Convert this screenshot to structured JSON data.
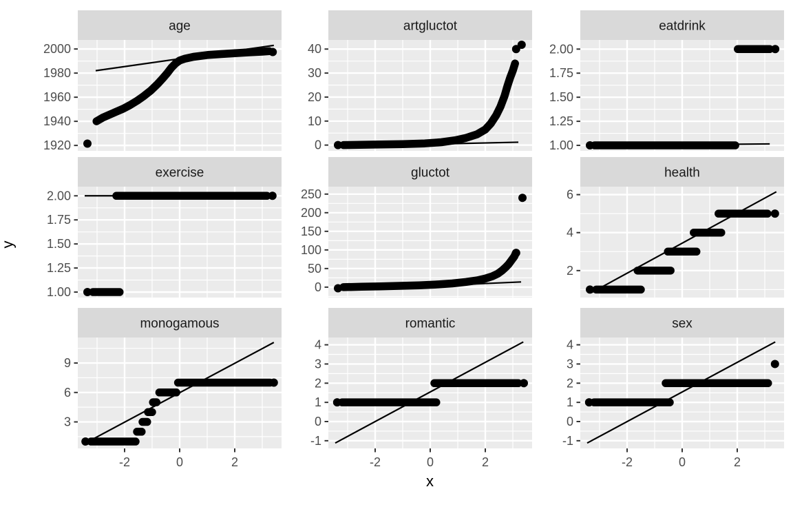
{
  "axes": {
    "x_label": "x",
    "y_label": "y"
  },
  "style": {
    "panel_bg": "#EBEBEB",
    "strip_bg": "#D9D9D9",
    "grid": "#FFFFFF",
    "point": "#000000",
    "ref_line": "#000000",
    "axis_text": "#4D4D4D",
    "strip_text": "#1A1A1A",
    "tick_mark": "#333333"
  },
  "chart_data": {
    "type": "scatter",
    "title": "",
    "description": "3x3 faceted Q-Q plots: sample quantiles (y) vs theoretical normal quantiles (x), free y scales, with Q-Q reference lines",
    "xlabel": "x",
    "ylabel": "y",
    "grid": true,
    "x_domain": [
      -3.7,
      3.7
    ],
    "x_ticks": {
      "values": [
        -2,
        0,
        2
      ],
      "labels": [
        "-2",
        "0",
        "2"
      ]
    },
    "facets": [
      {
        "title": "age",
        "row": 0,
        "col": 0,
        "y_domain": [
          1915.5,
          2007.5
        ],
        "y_ticks": {
          "values": [
            1920,
            1940,
            1960,
            1980,
            2000
          ],
          "labels": [
            "1920",
            "1940",
            "1960",
            "1980",
            "2000"
          ]
        },
        "groups": [
          {
            "type": "dot",
            "x": -3.35,
            "y": 1921.5
          },
          {
            "type": "curve",
            "pts": [
              [
                -3.02,
                1940
              ],
              [
                -2.8,
                1943
              ],
              [
                -2.55,
                1945.5
              ],
              [
                -2.3,
                1948
              ],
              [
                -2.05,
                1950.5
              ],
              [
                -1.8,
                1953.5
              ],
              [
                -1.55,
                1957
              ],
              [
                -1.3,
                1961
              ],
              [
                -1.05,
                1965.5
              ],
              [
                -0.8,
                1971
              ],
              [
                -0.6,
                1976
              ],
              [
                -0.45,
                1980
              ],
              [
                -0.3,
                1984.5
              ],
              [
                -0.15,
                1988
              ],
              [
                0,
                1990.5
              ],
              [
                0.2,
                1992
              ],
              [
                0.5,
                1993.5
              ],
              [
                1,
                1995
              ],
              [
                1.5,
                1995.8
              ],
              [
                2,
                1996.5
              ],
              [
                2.5,
                1997.2
              ],
              [
                3,
                1997.8
              ],
              [
                3.25,
                1998.2
              ]
            ]
          },
          {
            "type": "dot",
            "x": 3.38,
            "y": 1997.5
          }
        ],
        "line": [
          -3.05,
          1982,
          3.42,
          2003
        ]
      },
      {
        "title": "artgluctot",
        "row": 0,
        "col": 1,
        "y_domain": [
          -2.4,
          43.8
        ],
        "y_ticks": {
          "values": [
            0,
            10,
            20,
            30,
            40
          ],
          "labels": [
            "0",
            "10",
            "20",
            "30",
            "40"
          ]
        },
        "groups": [
          {
            "type": "dot",
            "x": -3.35,
            "y": 0
          },
          {
            "type": "curve",
            "pts": [
              [
                -3.15,
                0
              ],
              [
                -2,
                0.2
              ],
              [
                -1,
                0.4
              ],
              [
                -0.2,
                0.7
              ],
              [
                0.4,
                1.2
              ],
              [
                0.9,
                2
              ],
              [
                1.3,
                3
              ],
              [
                1.7,
                4.5
              ],
              [
                2,
                6.5
              ],
              [
                2.2,
                9
              ],
              [
                2.4,
                12.5
              ],
              [
                2.55,
                16
              ],
              [
                2.7,
                20.5
              ],
              [
                2.8,
                24.5
              ],
              [
                2.9,
                28
              ],
              [
                3,
                31
              ],
              [
                3.08,
                34
              ]
            ]
          },
          {
            "type": "dot",
            "x": 3.12,
            "y": 40
          },
          {
            "type": "dot",
            "x": 3.32,
            "y": 41.8
          }
        ],
        "line": [
          -3.42,
          -0.5,
          3.2,
          1.2
        ]
      },
      {
        "title": "eatdrink",
        "row": 0,
        "col": 2,
        "y_domain": [
          0.943,
          2.095
        ],
        "y_ticks": {
          "values": [
            1.0,
            1.25,
            1.5,
            1.75,
            2.0
          ],
          "labels": [
            "1.00",
            "1.25",
            "1.50",
            "1.75",
            "2.00"
          ]
        },
        "groups": [
          {
            "type": "dot",
            "x": -3.35,
            "y": 1
          },
          {
            "type": "strip",
            "y": 1,
            "x1": -3.18,
            "x2": 1.93
          },
          {
            "type": "strip",
            "y": 2,
            "x1": 2.02,
            "x2": 3.18
          },
          {
            "type": "dot",
            "x": 3.38,
            "y": 2
          }
        ],
        "line": [
          -3.45,
          0.998,
          3.18,
          1.015
        ]
      },
      {
        "title": "exercise",
        "row": 1,
        "col": 0,
        "y_domain": [
          0.943,
          2.095
        ],
        "y_ticks": {
          "values": [
            1.0,
            1.25,
            1.5,
            1.75,
            2.0
          ],
          "labels": [
            "1.00",
            "1.25",
            "1.50",
            "1.75",
            "2.00"
          ]
        },
        "groups": [
          {
            "type": "dot",
            "x": -3.35,
            "y": 1
          },
          {
            "type": "strip",
            "y": 1,
            "x1": -3.15,
            "x2": -2.18
          },
          {
            "type": "strip",
            "y": 2,
            "x1": -2.3,
            "x2": 3.17
          },
          {
            "type": "dot",
            "x": 3.37,
            "y": 2
          }
        ],
        "line": [
          -3.45,
          2,
          3.2,
          2
        ]
      },
      {
        "title": "gluctot",
        "row": 1,
        "col": 1,
        "y_domain": [
          -28,
          270
        ],
        "y_ticks": {
          "values": [
            0,
            50,
            100,
            150,
            200,
            250
          ],
          "labels": [
            "0",
            "50",
            "100",
            "150",
            "200",
            "250"
          ]
        },
        "groups": [
          {
            "type": "dot",
            "x": -3.35,
            "y": -3
          },
          {
            "type": "curve",
            "pts": [
              [
                -3.15,
                0
              ],
              [
                -2.5,
                1
              ],
              [
                -1.8,
                2
              ],
              [
                -1.1,
                3.5
              ],
              [
                -0.4,
                5
              ],
              [
                0.2,
                7
              ],
              [
                0.8,
                10
              ],
              [
                1.3,
                14
              ],
              [
                1.7,
                18
              ],
              [
                2,
                23
              ],
              [
                2.25,
                29
              ],
              [
                2.45,
                36
              ],
              [
                2.6,
                44
              ],
              [
                2.75,
                54
              ],
              [
                2.85,
                62
              ],
              [
                2.95,
                72
              ],
              [
                3.05,
                82
              ],
              [
                3.1,
                90
              ]
            ]
          },
          {
            "type": "dot",
            "x": 3.12,
            "y": 92
          },
          {
            "type": "dot",
            "x": 3.35,
            "y": 240
          }
        ],
        "line": [
          -3.42,
          -8,
          3.3,
          14
        ]
      },
      {
        "title": "health",
        "row": 1,
        "col": 2,
        "y_domain": [
          0.58,
          6.42
        ],
        "y_ticks": {
          "values": [
            2,
            4,
            6
          ],
          "labels": [
            "2",
            "4",
            "6"
          ]
        },
        "groups": [
          {
            "type": "dot",
            "x": -3.35,
            "y": 1
          },
          {
            "type": "strip",
            "y": 1,
            "x1": -3.12,
            "x2": -1.5
          },
          {
            "type": "strip",
            "y": 2,
            "x1": -1.62,
            "x2": -0.42
          },
          {
            "type": "strip",
            "y": 3,
            "x1": -0.52,
            "x2": 0.52
          },
          {
            "type": "strip",
            "y": 4,
            "x1": 0.42,
            "x2": 1.42
          },
          {
            "type": "strip",
            "y": 5,
            "x1": 1.32,
            "x2": 3.1
          },
          {
            "type": "dot",
            "x": 3.37,
            "y": 5
          }
        ],
        "line": [
          -3.28,
          0.85,
          3.42,
          6.15
        ]
      },
      {
        "title": "monogamous",
        "row": 2,
        "col": 0,
        "y_domain": [
          0.3,
          11.6
        ],
        "y_ticks": {
          "values": [
            3,
            6,
            9
          ],
          "labels": [
            "3",
            "6",
            "9"
          ]
        },
        "groups": [
          {
            "type": "dot",
            "x": -3.42,
            "y": 1
          },
          {
            "type": "strip",
            "y": 1,
            "x1": -3.22,
            "x2": -1.6
          },
          {
            "type": "strip",
            "y": 2,
            "x1": -1.55,
            "x2": -1.38
          },
          {
            "type": "strip",
            "y": 3,
            "x1": -1.35,
            "x2": -1.18
          },
          {
            "type": "strip",
            "y": 4,
            "x1": -1.15,
            "x2": -1.0
          },
          {
            "type": "strip",
            "y": 5,
            "x1": -0.97,
            "x2": -0.84
          },
          {
            "type": "strip",
            "y": 6,
            "x1": -0.74,
            "x2": -0.12
          },
          {
            "type": "strip",
            "y": 7,
            "x1": -0.06,
            "x2": 3.28
          },
          {
            "type": "dot",
            "x": 3.42,
            "y": 7
          }
        ],
        "line": [
          -3.25,
          1.1,
          3.42,
          11.1
        ]
      },
      {
        "title": "romantic",
        "row": 2,
        "col": 1,
        "y_domain": [
          -1.4,
          4.38
        ],
        "y_ticks": {
          "values": [
            -1,
            0,
            1,
            2,
            3,
            4
          ],
          "labels": [
            "-1",
            "0",
            "1",
            "2",
            "3",
            "4"
          ]
        },
        "groups": [
          {
            "type": "dot",
            "x": -3.38,
            "y": 1
          },
          {
            "type": "strip",
            "y": 1,
            "x1": -3.2,
            "x2": 0.22
          },
          {
            "type": "strip",
            "y": 2,
            "x1": 0.15,
            "x2": 3.2
          },
          {
            "type": "dot",
            "x": 3.4,
            "y": 2
          }
        ],
        "line": [
          -3.45,
          -1.12,
          3.38,
          4.15
        ]
      },
      {
        "title": "sex",
        "row": 2,
        "col": 2,
        "y_domain": [
          -1.4,
          4.38
        ],
        "y_ticks": {
          "values": [
            -1,
            0,
            1,
            2,
            3,
            4
          ],
          "labels": [
            "-1",
            "0",
            "1",
            "2",
            "3",
            "4"
          ]
        },
        "groups": [
          {
            "type": "dot",
            "x": -3.38,
            "y": 1
          },
          {
            "type": "strip",
            "y": 1,
            "x1": -3.2,
            "x2": -0.45
          },
          {
            "type": "strip",
            "y": 2,
            "x1": -0.6,
            "x2": 3.12
          },
          {
            "type": "dot",
            "x": 3.37,
            "y": 3
          }
        ],
        "line": [
          -3.45,
          -1.12,
          3.38,
          4.15
        ]
      }
    ]
  }
}
